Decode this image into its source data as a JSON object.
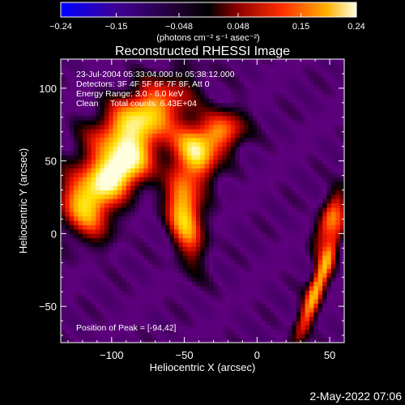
{
  "chart_data": {
    "type": "heatmap",
    "title": "Reconstructed RHESSI Image",
    "xlabel": "Heliocentric X (arcsec)",
    "ylabel": "Heliocentric Y (arcsec)",
    "xlim": [
      -135,
      60
    ],
    "ylim": [
      -75,
      120
    ],
    "xticks": [
      -100,
      -50,
      0,
      50
    ],
    "xtick_labels": [
      "−100",
      "−50",
      "0",
      "50"
    ],
    "yticks": [
      -50,
      0,
      50,
      100
    ],
    "ytick_labels": [
      "−50",
      "0",
      "50",
      "100"
    ],
    "colorbar": {
      "range": [
        -0.24,
        0.24
      ],
      "ticks": [
        -0.24,
        -0.15,
        -0.048,
        0.048,
        0.15,
        0.24
      ],
      "tick_labels": [
        "−0.24",
        "−0.15",
        "−0.048",
        "0.048",
        "0.15",
        "0.24"
      ],
      "label": "(photons cm⁻² s⁻¹ asec⁻²)"
    },
    "annotations": [
      "23-Jul-2004 05:33:04.000 to 05:38:12.000",
      "Detectors: 3F 4F 5F 6F 7F 8F, Att 0",
      "Energy Range: 3.0 - 6.0 keV",
      "Clean     Total counts: 6.43E+04"
    ],
    "peak_label": "Position of Peak = [-94,42]",
    "peak": [
      -94,
      42
    ],
    "sources": [
      {
        "x": -95,
        "y": 43,
        "amp": 0.24,
        "sx": 18,
        "sy": 11,
        "angle": 40
      },
      {
        "x": -82,
        "y": 78,
        "amp": 0.19,
        "sx": 26,
        "sy": 13,
        "angle": 35
      },
      {
        "x": -118,
        "y": 18,
        "amp": 0.12,
        "sx": 12,
        "sy": 16,
        "angle": 20
      },
      {
        "x": -50,
        "y": 15,
        "amp": 0.19,
        "sx": 8,
        "sy": 22,
        "angle": 10
      },
      {
        "x": -42,
        "y": 55,
        "amp": 0.17,
        "sx": 8,
        "sy": 14,
        "angle": 25
      },
      {
        "x": -25,
        "y": 70,
        "amp": 0.11,
        "sx": 12,
        "sy": 10,
        "angle": 30
      },
      {
        "x": 42,
        "y": -35,
        "amp": 0.16,
        "sx": 4,
        "sy": 30,
        "angle": -20
      },
      {
        "x": 50,
        "y": 10,
        "amp": 0.09,
        "sx": 5,
        "sy": 15,
        "angle": -20
      }
    ],
    "colormap": [
      "#0000ff",
      "#400060",
      "#600080",
      "#000000",
      "#a00000",
      "#ff2000",
      "#ff9000",
      "#ffe000",
      "#ffffe0"
    ]
  },
  "footer": {
    "date": "2-May-2022 07:06"
  }
}
